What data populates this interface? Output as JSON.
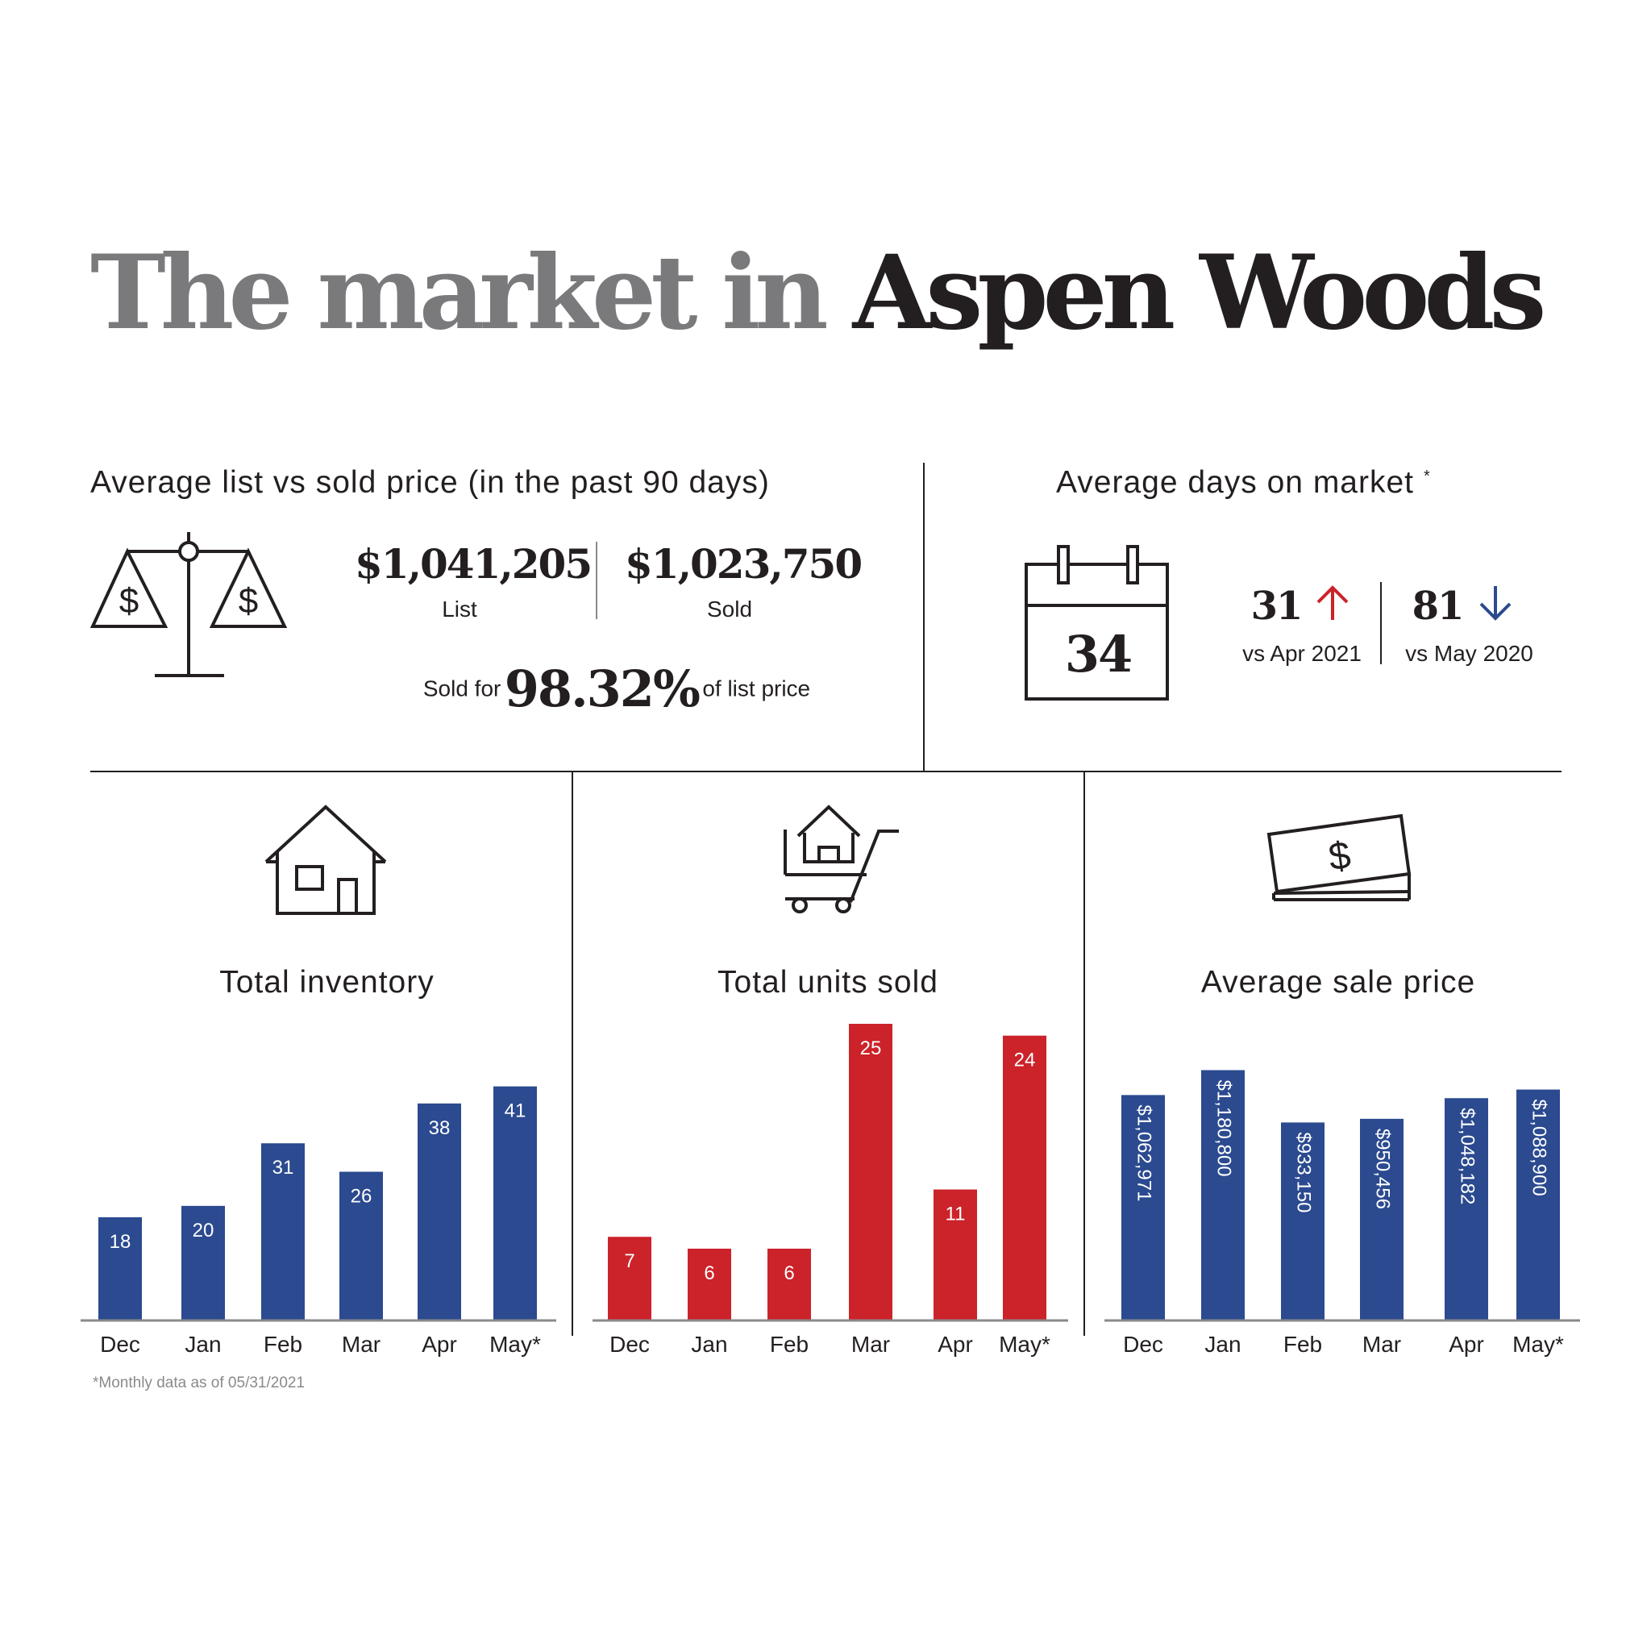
{
  "title": {
    "lead": "The market in",
    "place": "Aspen Woods"
  },
  "list_vs_sold": {
    "heading": "Average list vs sold price (in the past 90 days)",
    "list_value": "$1,041,205",
    "list_label": "List",
    "sold_value": "$1,023,750",
    "sold_label": "Sold",
    "ratio_prefix": "Sold for",
    "ratio_value": "98.32%",
    "ratio_suffix": "of list price"
  },
  "days_on_market": {
    "heading": "Average days on market",
    "asterisk": "*",
    "current": "34",
    "comparisons": [
      {
        "value": "31",
        "label": "vs Apr 2021",
        "direction": "up",
        "color": "#cc2229"
      },
      {
        "value": "81",
        "label": "vs May 2020",
        "direction": "down",
        "color": "#2c4a8c"
      }
    ]
  },
  "footnote": "*Monthly data as of 05/31/2021",
  "colors": {
    "blue": "#2b4a8f",
    "red": "#cc2229",
    "axis": "#8a8a8c"
  },
  "chart_data": [
    {
      "type": "bar",
      "title": "Total inventory",
      "categories": [
        "Dec",
        "Jan",
        "Feb",
        "Mar",
        "Apr",
        "May*"
      ],
      "values": [
        18,
        20,
        31,
        26,
        38,
        41
      ],
      "labels": [
        "18",
        "20",
        "31",
        "26",
        "38",
        "41"
      ],
      "ylim": [
        0,
        52
      ],
      "color": "#2b4a8f",
      "label_orientation": "horizontal",
      "grid": false,
      "icon": "house-icon"
    },
    {
      "type": "bar",
      "title": "Total units sold",
      "categories": [
        "Dec",
        "Jan",
        "Feb",
        "Mar",
        "Apr",
        "May*"
      ],
      "values": [
        7,
        6,
        6,
        25,
        11,
        24
      ],
      "labels": [
        "7",
        "6",
        "6",
        "25",
        "11",
        "24"
      ],
      "ylim": [
        0,
        25
      ],
      "color": "#cc2229",
      "label_orientation": "horizontal",
      "grid": false,
      "icon": "shopping-cart-house-icon"
    },
    {
      "type": "bar",
      "title": "Average sale price",
      "categories": [
        "Dec",
        "Jan",
        "Feb",
        "Mar",
        "Apr",
        "May*"
      ],
      "values": [
        1062971,
        1180800,
        933150,
        950456,
        1048182,
        1088900
      ],
      "labels": [
        "$1,062,971",
        "$1,180,800",
        "$933,150",
        "$950,456",
        "$1,048,182",
        "$1,088,900"
      ],
      "ylim": [
        0,
        1400000
      ],
      "color": "#2b4a8f",
      "label_orientation": "vertical",
      "grid": false,
      "icon": "money-bills-icon"
    }
  ]
}
